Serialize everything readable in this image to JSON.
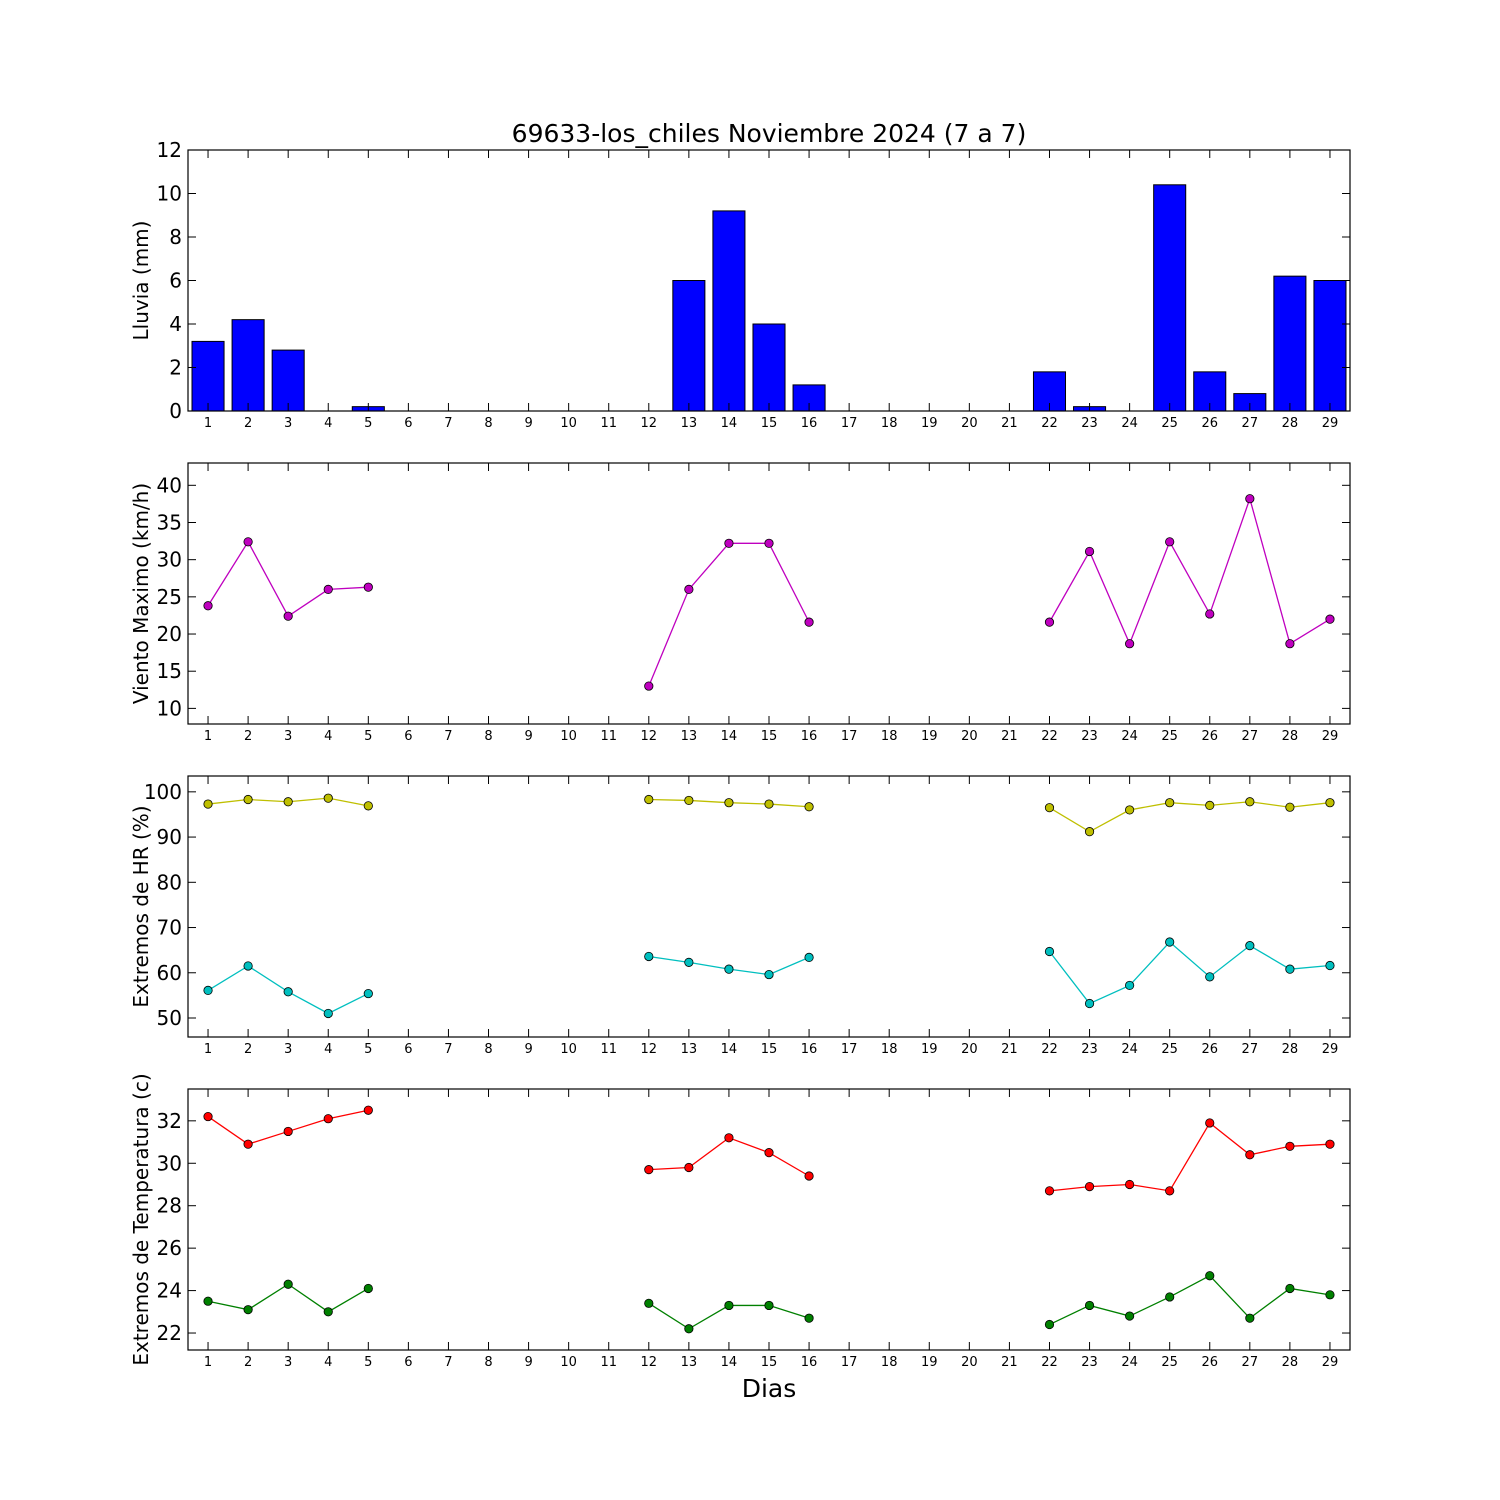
{
  "title": "69633-los_chiles Noviembre 2024  (7 a 7)",
  "xlabel": "Dias",
  "x_ticks": [
    "1",
    "2",
    "3",
    "4",
    "5",
    "6",
    "7",
    "8",
    "9",
    "10",
    "11",
    "12",
    "13",
    "14",
    "15",
    "16",
    "17",
    "18",
    "19",
    "20",
    "21",
    "22",
    "23",
    "24",
    "25",
    "26",
    "27",
    "28",
    "29"
  ],
  "chart_data": [
    {
      "type": "bar",
      "ylabel": "Lluvia (mm)",
      "ylim": [
        0,
        12
      ],
      "yticks": [
        0,
        2,
        4,
        6,
        8,
        10,
        12
      ],
      "categories": [
        1,
        2,
        3,
        4,
        5,
        6,
        7,
        8,
        9,
        10,
        11,
        12,
        13,
        14,
        15,
        16,
        17,
        18,
        19,
        20,
        21,
        22,
        23,
        24,
        25,
        26,
        27,
        28,
        29
      ],
      "series": [
        {
          "color": "#0000ff",
          "values": [
            3.2,
            4.2,
            2.8,
            0,
            0.2,
            0,
            0,
            0,
            0,
            0,
            0,
            0,
            6.0,
            9.2,
            4.0,
            1.2,
            0,
            0,
            0,
            0,
            0,
            1.8,
            0.2,
            0,
            10.4,
            1.8,
            0.8,
            6.2,
            6.0
          ]
        }
      ]
    },
    {
      "type": "line",
      "ylabel": "Viento Maximo (km/h)",
      "ylim": [
        7.9,
        43
      ],
      "yticks": [
        10,
        15,
        20,
        25,
        30,
        35,
        40
      ],
      "x": [
        1,
        2,
        3,
        4,
        5,
        6,
        7,
        8,
        9,
        10,
        11,
        12,
        13,
        14,
        15,
        16,
        17,
        18,
        19,
        20,
        21,
        22,
        23,
        24,
        25,
        26,
        27,
        28,
        29
      ],
      "series": [
        {
          "color": "#bf00bf",
          "values": [
            23.8,
            32.4,
            22.4,
            26.0,
            26.3,
            null,
            null,
            null,
            null,
            null,
            null,
            13.0,
            26.0,
            32.2,
            32.2,
            21.6,
            null,
            null,
            null,
            null,
            null,
            21.6,
            31.1,
            18.7,
            32.4,
            22.7,
            38.2,
            18.7,
            22.0
          ]
        }
      ]
    },
    {
      "type": "line",
      "ylabel": "Extremos de HR (%)",
      "ylim": [
        45.8,
        103.5
      ],
      "yticks": [
        50,
        60,
        70,
        80,
        90,
        100
      ],
      "x": [
        1,
        2,
        3,
        4,
        5,
        6,
        7,
        8,
        9,
        10,
        11,
        12,
        13,
        14,
        15,
        16,
        17,
        18,
        19,
        20,
        21,
        22,
        23,
        24,
        25,
        26,
        27,
        28,
        29
      ],
      "series": [
        {
          "color": "#bfbf00",
          "values": [
            97.3,
            98.3,
            97.8,
            98.6,
            96.9,
            null,
            null,
            null,
            null,
            null,
            null,
            98.3,
            98.1,
            97.6,
            97.3,
            96.7,
            null,
            null,
            null,
            null,
            null,
            96.5,
            91.2,
            96.0,
            97.6,
            97.0,
            97.8,
            96.6,
            97.6
          ]
        },
        {
          "color": "#00bfbf",
          "values": [
            56.1,
            61.5,
            55.8,
            51.0,
            55.4,
            null,
            null,
            null,
            null,
            null,
            null,
            63.6,
            62.3,
            60.8,
            59.6,
            63.4,
            null,
            null,
            null,
            null,
            null,
            64.7,
            53.2,
            57.2,
            66.8,
            59.1,
            66.0,
            60.8,
            61.6
          ]
        }
      ]
    },
    {
      "type": "line",
      "ylabel": "Extremos de Temperatura (c)",
      "ylim": [
        21.2,
        33.5
      ],
      "yticks": [
        22,
        24,
        26,
        28,
        30,
        32
      ],
      "x": [
        1,
        2,
        3,
        4,
        5,
        6,
        7,
        8,
        9,
        10,
        11,
        12,
        13,
        14,
        15,
        16,
        17,
        18,
        19,
        20,
        21,
        22,
        23,
        24,
        25,
        26,
        27,
        28,
        29
      ],
      "series": [
        {
          "color": "#ff0000",
          "values": [
            32.2,
            30.9,
            31.5,
            32.1,
            32.5,
            null,
            null,
            null,
            null,
            null,
            null,
            29.7,
            29.8,
            31.2,
            30.5,
            29.4,
            null,
            null,
            null,
            null,
            null,
            28.7,
            28.9,
            29.0,
            28.7,
            31.9,
            30.4,
            30.8,
            30.9
          ]
        },
        {
          "color": "#008000",
          "values": [
            23.5,
            23.1,
            24.3,
            23.0,
            24.1,
            null,
            null,
            null,
            null,
            null,
            null,
            23.4,
            22.2,
            23.3,
            23.3,
            22.7,
            null,
            null,
            null,
            null,
            null,
            22.4,
            23.3,
            22.8,
            23.7,
            24.7,
            22.7,
            24.1,
            23.8
          ]
        }
      ]
    }
  ]
}
